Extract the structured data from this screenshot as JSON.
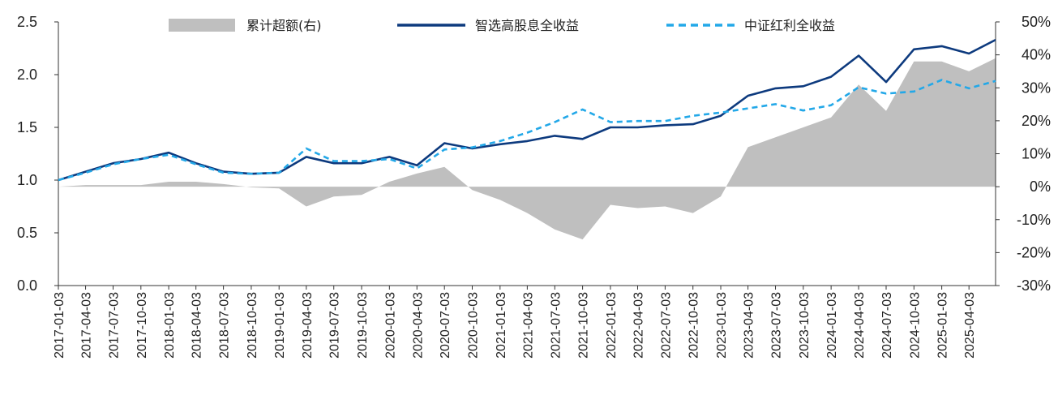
{
  "chart_data": {
    "type": "line",
    "left_axis": {
      "ylim": [
        0,
        2.5
      ],
      "ticks": [
        "0.0",
        "0.5",
        "1.0",
        "1.5",
        "2.0",
        "2.5"
      ]
    },
    "right_axis": {
      "ylim": [
        -30,
        50
      ],
      "ticks": [
        "-30%",
        "-20%",
        "-10%",
        "0%",
        "10%",
        "20%",
        "30%",
        "40%",
        "50%"
      ],
      "unit": "%"
    },
    "x_tick_labels": [
      "2017-01-03",
      "2017-04-03",
      "2017-07-03",
      "2017-10-03",
      "2018-01-03",
      "2018-04-03",
      "2018-07-03",
      "2018-10-03",
      "2019-01-03",
      "2019-04-03",
      "2019-07-03",
      "2019-10-03",
      "2020-01-03",
      "2020-04-03",
      "2020-07-03",
      "2020-10-03",
      "2021-01-03",
      "2021-04-03",
      "2021-07-03",
      "2021-10-03",
      "2022-01-03",
      "2022-04-03",
      "2022-07-03",
      "2022-10-03",
      "2023-01-03",
      "2023-04-03",
      "2023-07-03",
      "2023-10-03",
      "2024-01-03",
      "2024-04-03",
      "2024-07-03",
      "2024-10-03",
      "2025-01-03",
      "2025-04-03"
    ],
    "x": [
      "2017-01-03",
      "2017-04-03",
      "2017-07-03",
      "2017-10-03",
      "2018-01-03",
      "2018-04-03",
      "2018-07-03",
      "2018-10-03",
      "2019-01-03",
      "2019-04-03",
      "2019-07-03",
      "2019-10-03",
      "2020-01-03",
      "2020-04-03",
      "2020-07-03",
      "2020-10-03",
      "2021-01-03",
      "2021-04-03",
      "2021-07-03",
      "2021-10-03",
      "2022-01-03",
      "2022-04-03",
      "2022-07-03",
      "2022-10-03",
      "2023-01-03",
      "2023-04-03",
      "2023-07-03",
      "2023-10-03",
      "2024-01-03",
      "2024-04-03",
      "2024-07-03",
      "2024-10-03",
      "2025-01-03",
      "2025-04-03",
      "2025-06-30"
    ],
    "legend_position": "top",
    "series": [
      {
        "name": "累计超额(右)",
        "type": "area",
        "axis": "right",
        "color": "#bfbfbf",
        "values": [
          0,
          0.5,
          0.5,
          0.5,
          1.5,
          1.5,
          0.8,
          -0.2,
          -0.5,
          -6,
          -3,
          -2.5,
          1.5,
          4,
          6,
          -1,
          -4,
          -8,
          -13,
          -16,
          -5.5,
          -6.5,
          -6,
          -8,
          -3,
          12,
          15,
          18,
          21,
          31,
          23,
          38,
          38,
          35,
          39
        ]
      },
      {
        "name": "智选高股息全收益",
        "type": "line",
        "axis": "left",
        "color": "#0d3a7e",
        "values": [
          1.0,
          1.08,
          1.16,
          1.2,
          1.26,
          1.16,
          1.08,
          1.06,
          1.07,
          1.22,
          1.16,
          1.16,
          1.22,
          1.14,
          1.35,
          1.3,
          1.34,
          1.37,
          1.42,
          1.39,
          1.5,
          1.5,
          1.52,
          1.53,
          1.61,
          1.8,
          1.87,
          1.89,
          1.98,
          2.18,
          1.93,
          2.24,
          2.27,
          2.2,
          2.33
        ]
      },
      {
        "name": "中证红利全收益",
        "type": "line",
        "axis": "left",
        "color": "#23a8e8",
        "values": [
          1.0,
          1.07,
          1.15,
          1.2,
          1.24,
          1.15,
          1.07,
          1.06,
          1.07,
          1.3,
          1.18,
          1.18,
          1.2,
          1.11,
          1.29,
          1.31,
          1.37,
          1.45,
          1.55,
          1.67,
          1.55,
          1.56,
          1.56,
          1.61,
          1.64,
          1.68,
          1.72,
          1.66,
          1.71,
          1.88,
          1.82,
          1.84,
          1.95,
          1.87,
          1.94
        ]
      }
    ]
  }
}
